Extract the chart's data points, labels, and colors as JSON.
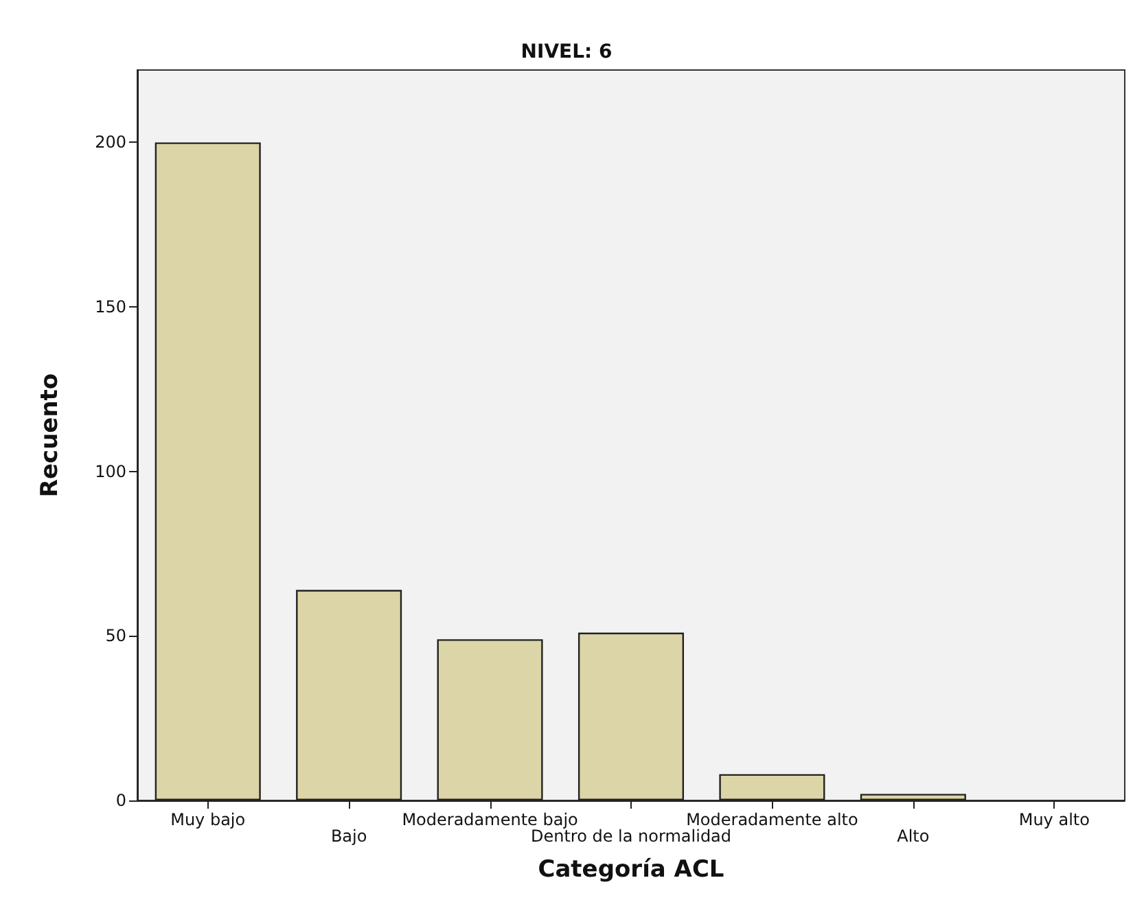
{
  "chart_data": {
    "type": "bar",
    "title": "NIVEL: 6",
    "xlabel": "Categoría ACL",
    "ylabel": "Recuento",
    "categories": [
      "Muy bajo",
      "Bajo",
      "Moderadamente bajo",
      "Dentro de la normalidad",
      "Moderadamente alto",
      "Alto",
      "Muy alto"
    ],
    "values": [
      200,
      64,
      49,
      51,
      8,
      2,
      0
    ],
    "color": "#dbd5a7",
    "ylim": [
      0,
      222
    ],
    "yticks": [
      0,
      50,
      100,
      150,
      200
    ],
    "grid": false
  }
}
